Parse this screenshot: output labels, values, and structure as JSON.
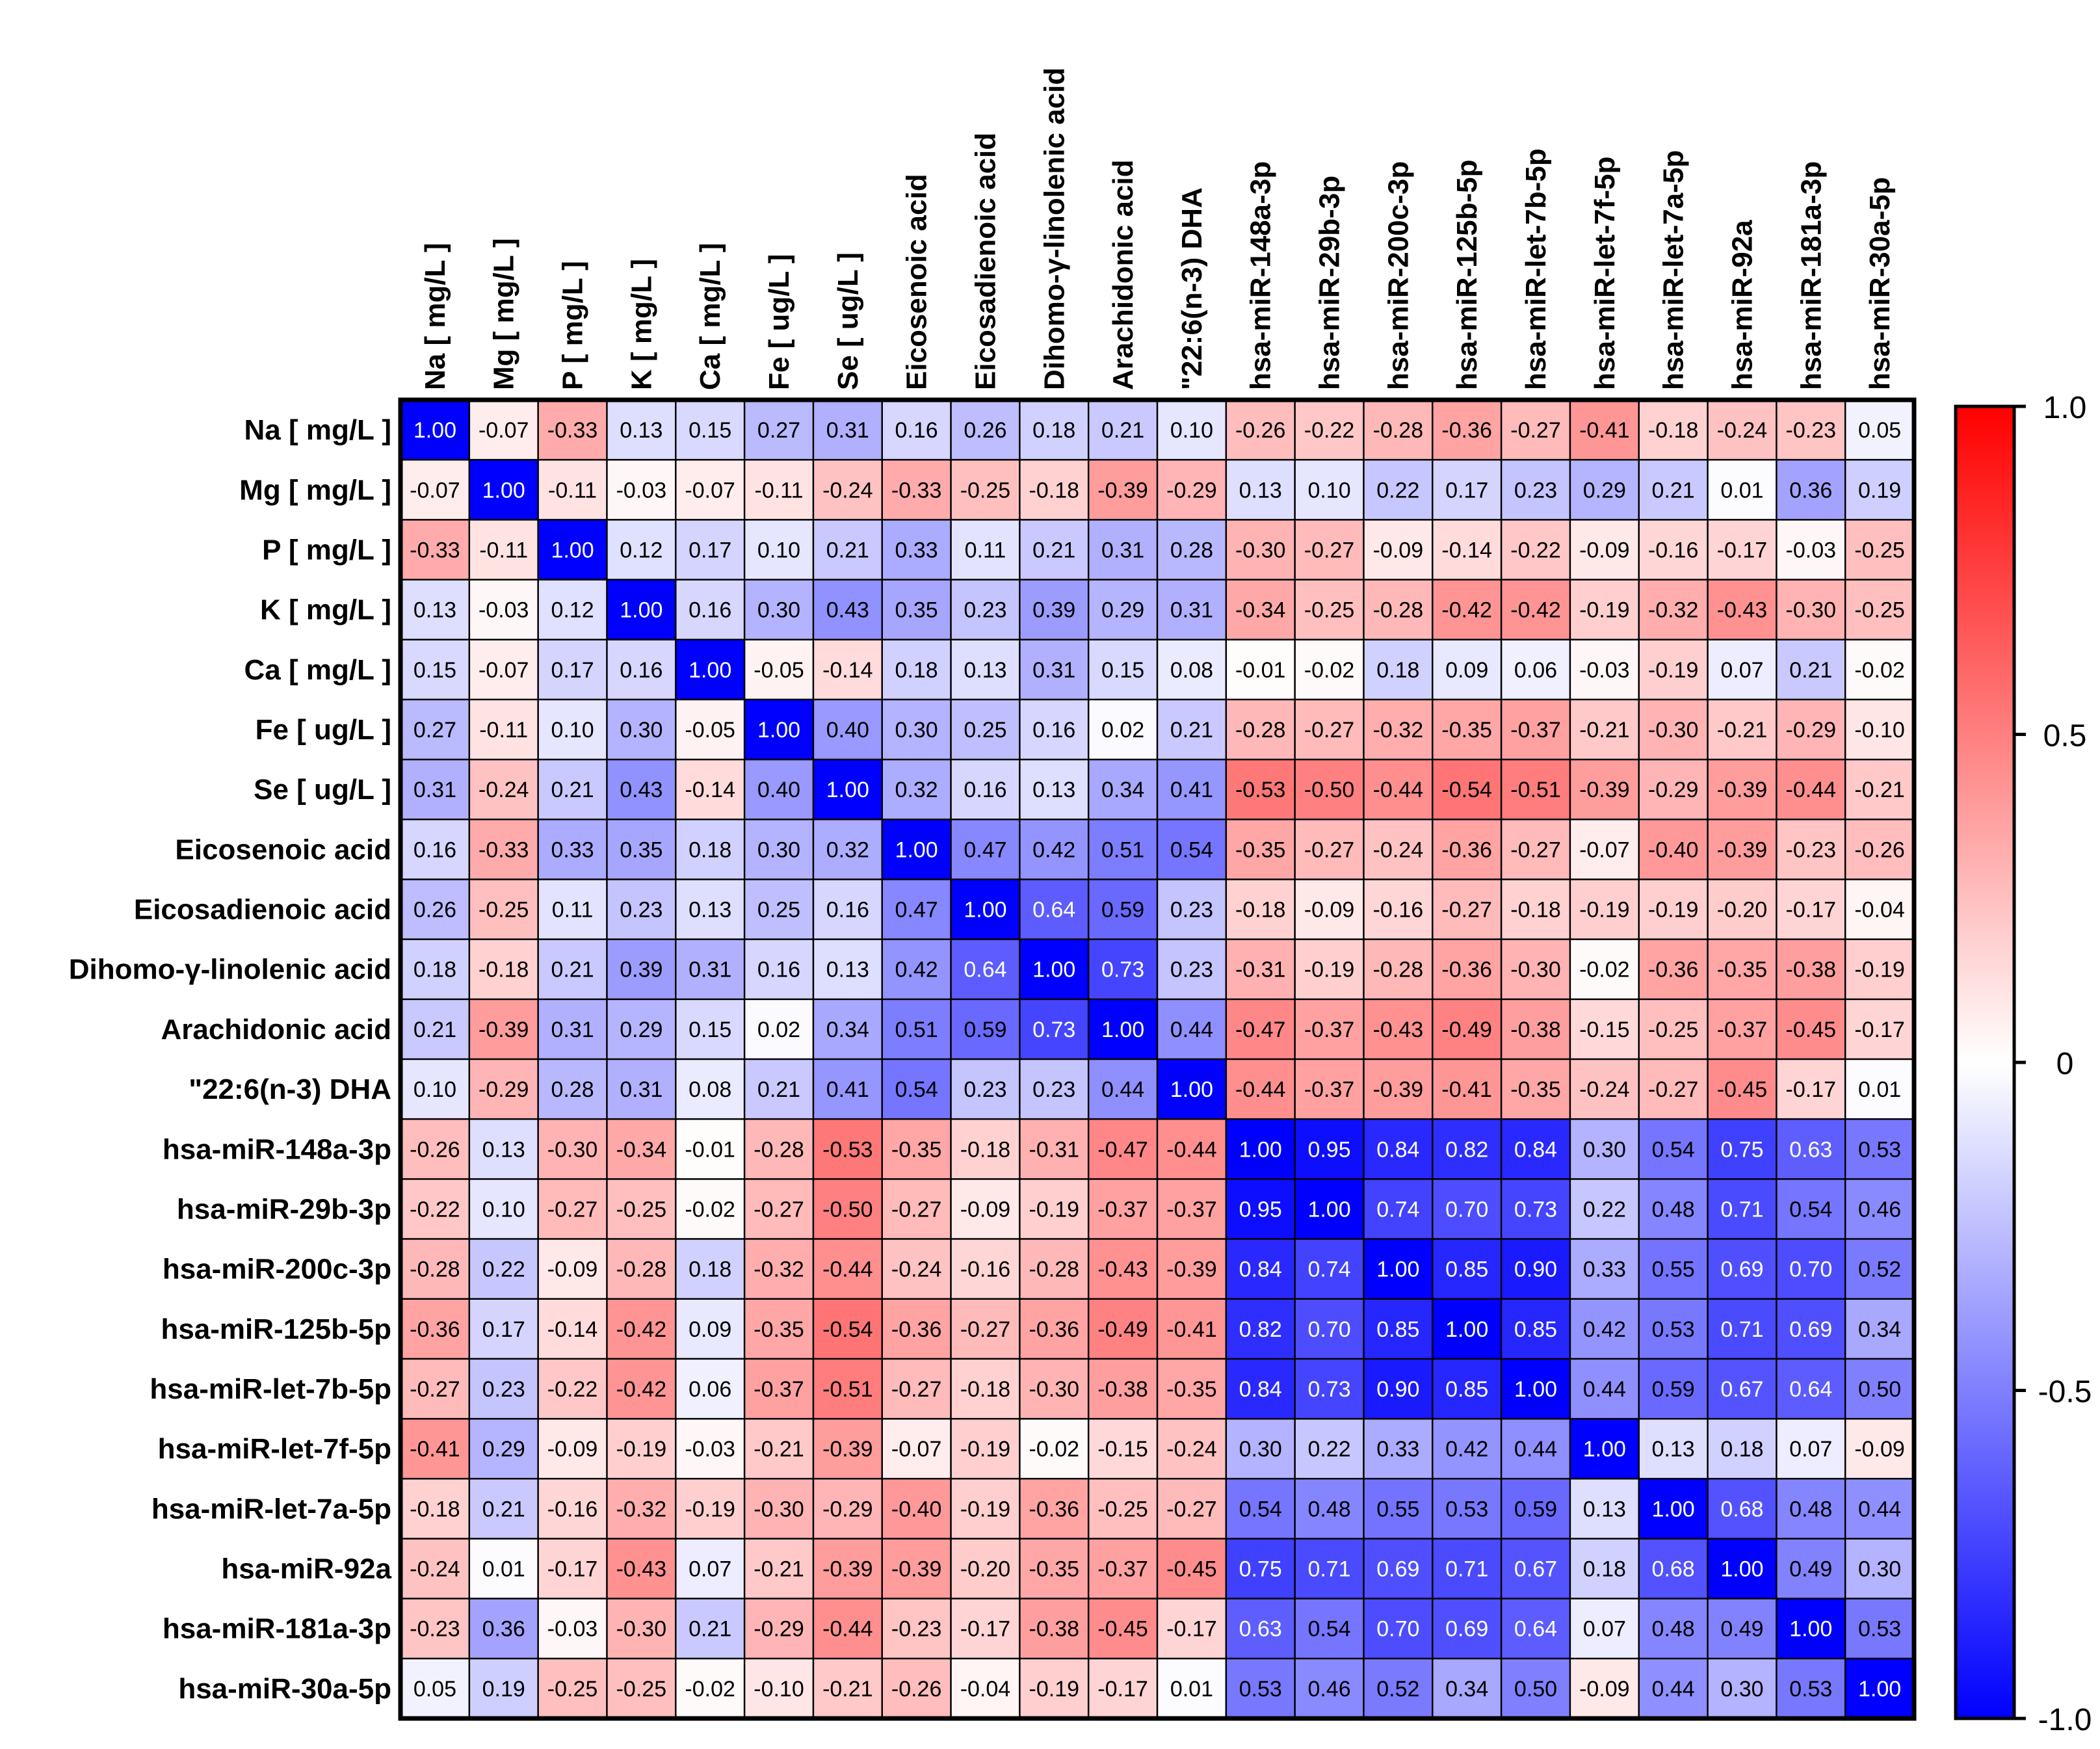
{
  "chart_data": {
    "type": "heatmap",
    "title": "",
    "labels": [
      "Na [ mg/L ]",
      "Mg [ mg/L ]",
      "P [ mg/L ]",
      "K [ mg/L ]",
      "Ca [ mg/L ]",
      "Fe [ ug/L ]",
      "Se [ ug/L ]",
      "Eicosenoic acid",
      "Eicosadienoic acid",
      "Dihomo-γ-linolenic acid",
      "Arachidonic acid",
      "\"22:6(n-3) DHA",
      "hsa-miR-148a-3p",
      "hsa-miR-29b-3p",
      "hsa-miR-200c-3p",
      "hsa-miR-125b-5p",
      "hsa-miR-let-7b-5p",
      "hsa-miR-let-7f-5p",
      "hsa-miR-let-7a-5p",
      "hsa-miR-92a",
      "hsa-miR-181a-3p",
      "hsa-miR-30a-5p"
    ],
    "matrix": [
      [
        1.0,
        -0.07,
        -0.33,
        0.13,
        0.15,
        0.27,
        0.31,
        0.16,
        0.26,
        0.18,
        0.21,
        0.1,
        -0.26,
        -0.22,
        -0.28,
        -0.36,
        -0.27,
        -0.41,
        -0.18,
        -0.24,
        -0.23,
        0.05
      ],
      [
        -0.07,
        1.0,
        -0.11,
        -0.03,
        -0.07,
        -0.11,
        -0.24,
        -0.33,
        -0.25,
        -0.18,
        -0.39,
        -0.29,
        0.13,
        0.1,
        0.22,
        0.17,
        0.23,
        0.29,
        0.21,
        0.01,
        0.36,
        0.19
      ],
      [
        -0.33,
        -0.11,
        1.0,
        0.12,
        0.17,
        0.1,
        0.21,
        0.33,
        0.11,
        0.21,
        0.31,
        0.28,
        -0.3,
        -0.27,
        -0.09,
        -0.14,
        -0.22,
        -0.09,
        -0.16,
        -0.17,
        -0.03,
        -0.25
      ],
      [
        0.13,
        -0.03,
        0.12,
        1.0,
        0.16,
        0.3,
        0.43,
        0.35,
        0.23,
        0.39,
        0.29,
        0.31,
        -0.34,
        -0.25,
        -0.28,
        -0.42,
        -0.42,
        -0.19,
        -0.32,
        -0.43,
        -0.3,
        -0.25
      ],
      [
        0.15,
        -0.07,
        0.17,
        0.16,
        1.0,
        -0.05,
        -0.14,
        0.18,
        0.13,
        0.31,
        0.15,
        0.08,
        -0.01,
        -0.02,
        0.18,
        0.09,
        0.06,
        -0.03,
        -0.19,
        0.07,
        0.21,
        -0.02
      ],
      [
        0.27,
        -0.11,
        0.1,
        0.3,
        -0.05,
        1.0,
        0.4,
        0.3,
        0.25,
        0.16,
        0.02,
        0.21,
        -0.28,
        -0.27,
        -0.32,
        -0.35,
        -0.37,
        -0.21,
        -0.3,
        -0.21,
        -0.29,
        -0.1
      ],
      [
        0.31,
        -0.24,
        0.21,
        0.43,
        -0.14,
        0.4,
        1.0,
        0.32,
        0.16,
        0.13,
        0.34,
        0.41,
        -0.53,
        -0.5,
        -0.44,
        -0.54,
        -0.51,
        -0.39,
        -0.29,
        -0.39,
        -0.44,
        -0.21
      ],
      [
        0.16,
        -0.33,
        0.33,
        0.35,
        0.18,
        0.3,
        0.32,
        1.0,
        0.47,
        0.42,
        0.51,
        0.54,
        -0.35,
        -0.27,
        -0.24,
        -0.36,
        -0.27,
        -0.07,
        -0.4,
        -0.39,
        -0.23,
        -0.26
      ],
      [
        0.26,
        -0.25,
        0.11,
        0.23,
        0.13,
        0.25,
        0.16,
        0.47,
        1.0,
        0.64,
        0.59,
        0.23,
        -0.18,
        -0.09,
        -0.16,
        -0.27,
        -0.18,
        -0.19,
        -0.19,
        -0.2,
        -0.17,
        -0.04
      ],
      [
        0.18,
        -0.18,
        0.21,
        0.39,
        0.31,
        0.16,
        0.13,
        0.42,
        0.64,
        1.0,
        0.73,
        0.23,
        -0.31,
        -0.19,
        -0.28,
        -0.36,
        -0.3,
        -0.02,
        -0.36,
        -0.35,
        -0.38,
        -0.19
      ],
      [
        0.21,
        -0.39,
        0.31,
        0.29,
        0.15,
        0.02,
        0.34,
        0.51,
        0.59,
        0.73,
        1.0,
        0.44,
        -0.47,
        -0.37,
        -0.43,
        -0.49,
        -0.38,
        -0.15,
        -0.25,
        -0.37,
        -0.45,
        -0.17
      ],
      [
        0.1,
        -0.29,
        0.28,
        0.31,
        0.08,
        0.21,
        0.41,
        0.54,
        0.23,
        0.23,
        0.44,
        1.0,
        -0.44,
        -0.37,
        -0.39,
        -0.41,
        -0.35,
        -0.24,
        -0.27,
        -0.45,
        -0.17,
        0.01
      ],
      [
        -0.26,
        0.13,
        -0.3,
        -0.34,
        -0.01,
        -0.28,
        -0.53,
        -0.35,
        -0.18,
        -0.31,
        -0.47,
        -0.44,
        1.0,
        0.95,
        0.84,
        0.82,
        0.84,
        0.3,
        0.54,
        0.75,
        0.63,
        0.53
      ],
      [
        -0.22,
        0.1,
        -0.27,
        -0.25,
        -0.02,
        -0.27,
        -0.5,
        -0.27,
        -0.09,
        -0.19,
        -0.37,
        -0.37,
        0.95,
        1.0,
        0.74,
        0.7,
        0.73,
        0.22,
        0.48,
        0.71,
        0.54,
        0.46
      ],
      [
        -0.28,
        0.22,
        -0.09,
        -0.28,
        0.18,
        -0.32,
        -0.44,
        -0.24,
        -0.16,
        -0.28,
        -0.43,
        -0.39,
        0.84,
        0.74,
        1.0,
        0.85,
        0.9,
        0.33,
        0.55,
        0.69,
        0.7,
        0.52
      ],
      [
        -0.36,
        0.17,
        -0.14,
        -0.42,
        0.09,
        -0.35,
        -0.54,
        -0.36,
        -0.27,
        -0.36,
        -0.49,
        -0.41,
        0.82,
        0.7,
        0.85,
        1.0,
        0.85,
        0.42,
        0.53,
        0.71,
        0.69,
        0.34
      ],
      [
        -0.27,
        0.23,
        -0.22,
        -0.42,
        0.06,
        -0.37,
        -0.51,
        -0.27,
        -0.18,
        -0.3,
        -0.38,
        -0.35,
        0.84,
        0.73,
        0.9,
        0.85,
        1.0,
        0.44,
        0.59,
        0.67,
        0.64,
        0.5
      ],
      [
        -0.41,
        0.29,
        -0.09,
        -0.19,
        -0.03,
        -0.21,
        -0.39,
        -0.07,
        -0.19,
        -0.02,
        -0.15,
        -0.24,
        0.3,
        0.22,
        0.33,
        0.42,
        0.44,
        1.0,
        0.13,
        0.18,
        0.07,
        -0.09
      ],
      [
        -0.18,
        0.21,
        -0.16,
        -0.32,
        -0.19,
        -0.3,
        -0.29,
        -0.4,
        -0.19,
        -0.36,
        -0.25,
        -0.27,
        0.54,
        0.48,
        0.55,
        0.53,
        0.59,
        0.13,
        1.0,
        0.68,
        0.48,
        0.44
      ],
      [
        -0.24,
        0.01,
        -0.17,
        -0.43,
        0.07,
        -0.21,
        -0.39,
        -0.39,
        -0.2,
        -0.35,
        -0.37,
        -0.45,
        0.75,
        0.71,
        0.69,
        0.71,
        0.67,
        0.18,
        0.68,
        1.0,
        0.49,
        0.3
      ],
      [
        -0.23,
        0.36,
        -0.03,
        -0.3,
        0.21,
        -0.29,
        -0.44,
        -0.23,
        -0.17,
        -0.38,
        -0.45,
        -0.17,
        0.63,
        0.54,
        0.7,
        0.69,
        0.64,
        0.07,
        0.48,
        0.49,
        1.0,
        0.53
      ],
      [
        0.05,
        0.19,
        -0.25,
        -0.25,
        -0.02,
        -0.1,
        -0.21,
        -0.26,
        -0.04,
        -0.19,
        -0.17,
        0.01,
        0.53,
        0.46,
        0.52,
        0.34,
        0.5,
        -0.09,
        0.44,
        0.3,
        0.53,
        1.0
      ]
    ],
    "color_scale": {
      "min": -1.0,
      "max": 1.0,
      "low_color": "#ff0000",
      "mid_color": "#ffffff",
      "high_color": "#0000ff",
      "tick_values": [
        1.0,
        0.5,
        0,
        -0.5,
        -1.0
      ],
      "tick_labels": [
        "1.0",
        "0.5",
        "0",
        "-0.5",
        "-1.0"
      ]
    },
    "legend_position": "right"
  }
}
